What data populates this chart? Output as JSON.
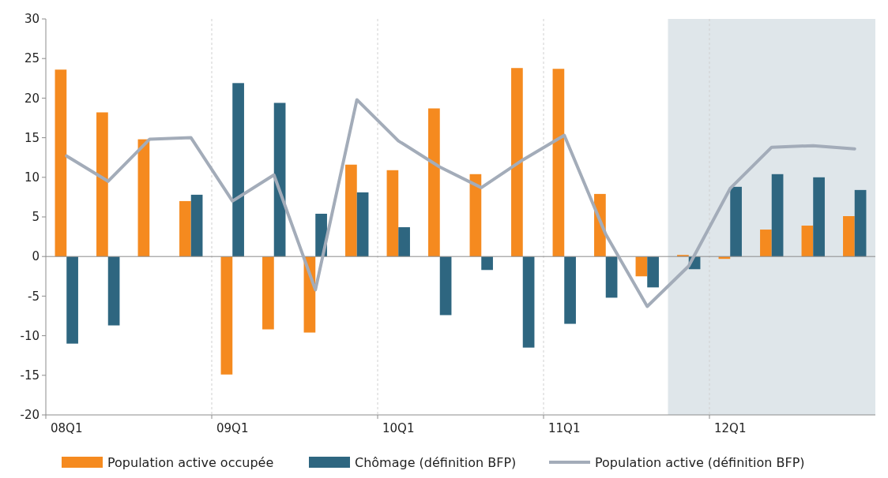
{
  "chart_data": {
    "type": "bar",
    "categories": [
      "08Q1",
      null,
      null,
      null,
      "09Q1",
      null,
      null,
      null,
      "10Q1",
      null,
      null,
      null,
      "11Q1",
      null,
      null,
      null,
      "12Q1",
      null,
      null,
      null
    ],
    "series": [
      {
        "name": "Population active occupée",
        "color": "#f58a1f",
        "values": [
          23.6,
          18.2,
          14.8,
          7.0,
          -14.9,
          -9.2,
          -9.6,
          11.6,
          10.9,
          18.7,
          10.4,
          23.8,
          23.7,
          7.9,
          -2.5,
          0.2,
          -0.3,
          3.4,
          3.9,
          5.1
        ]
      },
      {
        "name": "Chômage (définition BFP)",
        "color": "#2e6680",
        "values": [
          -11.0,
          -8.7,
          null,
          7.8,
          21.9,
          19.4,
          5.4,
          8.1,
          3.7,
          -7.4,
          -1.7,
          -11.5,
          -8.5,
          -5.2,
          -3.9,
          -1.6,
          8.8,
          10.4,
          10.0,
          8.4
        ]
      },
      {
        "name": "Population active (définition BFP)",
        "type": "line",
        "color": "#a3acb9",
        "values": [
          12.7,
          9.5,
          14.8,
          15.0,
          7.0,
          10.3,
          -4.2,
          19.8,
          14.6,
          11.3,
          8.7,
          12.2,
          15.3,
          2.8,
          -6.3,
          -1.2,
          8.6,
          13.8,
          14.0,
          13.6
        ]
      }
    ],
    "ylim": [
      -20,
      30
    ],
    "yticks": [
      -20,
      -15,
      -10,
      -5,
      0,
      5,
      10,
      15,
      20,
      25,
      30
    ],
    "grid": "x",
    "legend": "bottom"
  }
}
